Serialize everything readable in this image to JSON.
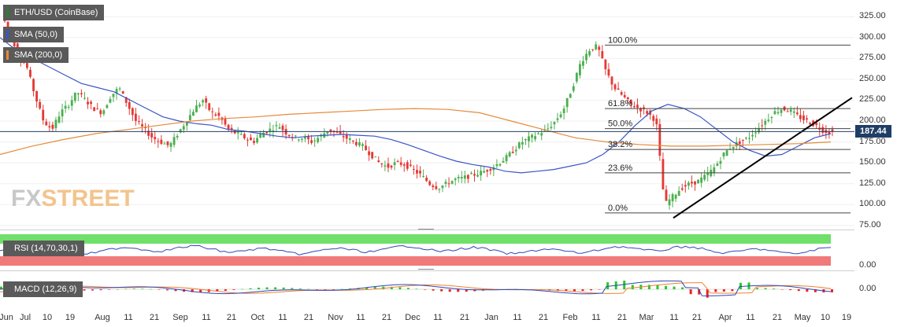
{
  "chart_data": {
    "type": "candlestick",
    "instrument": "ETH/USD (CoinBase)",
    "indicators": [
      "SMA (50,0)",
      "SMA (200,0)"
    ],
    "last_price": "187.44",
    "y_ticks": [
      "325.00",
      "300.00",
      "275.00",
      "250.00",
      "225.00",
      "200.00",
      "175.00",
      "150.00",
      "125.00",
      "100.00",
      "75.00"
    ],
    "y_range": [
      72,
      345
    ],
    "x_labels": [
      "Jun",
      "Jul",
      "10",
      "19",
      "Aug",
      "11",
      "21",
      "Sep",
      "11",
      "21",
      "Oct",
      "11",
      "21",
      "Nov",
      "11",
      "21",
      "Dec",
      "11",
      "21",
      "Jan",
      "11",
      "21",
      "Feb",
      "11",
      "21",
      "Mar",
      "11",
      "21",
      "Apr",
      "11",
      "21",
      "May",
      "10",
      "19"
    ],
    "fibonacci": [
      {
        "label": "100.0%",
        "price": 291
      },
      {
        "label": "61.8%",
        "price": 215
      },
      {
        "label": "50.0%",
        "price": 191
      },
      {
        "label": "38.2%",
        "price": 166
      },
      {
        "label": "23.6%",
        "price": 138
      },
      {
        "label": "0.0%",
        "price": 90
      }
    ],
    "trendline": {
      "from_price": 84,
      "to_price": 228
    },
    "price_path": [
      328,
      305,
      280,
      265,
      230,
      200,
      190,
      210,
      220,
      235,
      225,
      215,
      210,
      230,
      240,
      220,
      200,
      190,
      180,
      175,
      170,
      185,
      200,
      215,
      225,
      210,
      205,
      190,
      185,
      180,
      175,
      185,
      190,
      195,
      185,
      180,
      180,
      175,
      182,
      190,
      185,
      180,
      175,
      170,
      160,
      150,
      145,
      150,
      148,
      142,
      135,
      125,
      120,
      125,
      130,
      132,
      135,
      138,
      142,
      148,
      155,
      165,
      175,
      180,
      185,
      190,
      200,
      215,
      240,
      270,
      285,
      290,
      260,
      240,
      230,
      220,
      215,
      210,
      200,
      100,
      110,
      120,
      125,
      128,
      135,
      145,
      160,
      170,
      175,
      180,
      190,
      200,
      210,
      215,
      212,
      205,
      200,
      195,
      188,
      187
    ],
    "sma50_path": [
      300,
      285,
      275,
      265,
      255,
      245,
      240,
      235,
      225,
      215,
      205,
      200,
      197,
      195,
      190,
      188,
      185,
      182,
      180,
      182,
      183,
      184,
      183,
      182,
      178,
      172,
      165,
      158,
      152,
      148,
      145,
      140,
      138,
      140,
      142,
      146,
      150,
      160,
      175,
      195,
      212,
      220,
      215,
      205,
      190,
      175,
      165,
      158,
      160,
      170,
      180,
      185
    ],
    "sma200_path": [
      160,
      170,
      178,
      185,
      190,
      195,
      200,
      203,
      205,
      208,
      210,
      212,
      214,
      215,
      214,
      210,
      200,
      190,
      180,
      175,
      172,
      170,
      170,
      171,
      172,
      173,
      175
    ],
    "rsi": {
      "label": "RSI (14,70,30,1)",
      "tick": "0.00"
    },
    "macd": {
      "label": "MACD (12,26,9)",
      "tick": "0.00"
    }
  },
  "colors": {
    "up": "#4caf50",
    "down": "#e53935",
    "sma50": "#3b55c4",
    "sma200": "#e58a3a",
    "rsi_line": "#2f46b5",
    "rsi_over": "#6fe06a",
    "rsi_under": "#f07a7a",
    "macd_line": "#2f46b5",
    "signal_line": "#f08030",
    "hist_up": "#22cc22",
    "hist_down": "#ee2222"
  }
}
